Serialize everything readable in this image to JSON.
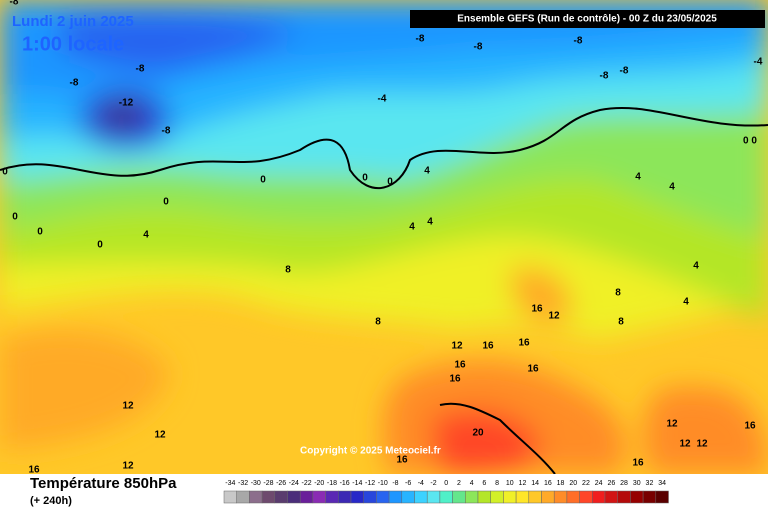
{
  "header": {
    "title": "Lundi 2 juin 2025",
    "time": "1:00 locale",
    "run": "Ensemble GEFS  (Run de contrôle)  -  00 Z du 23/05/2025"
  },
  "map": {
    "copyright": "Copyright © 2025 Meteociel.fr",
    "contour_labels": [
      -8,
      -8,
      -8,
      -8,
      -8,
      -8,
      -4,
      -8,
      -8,
      -12,
      -8,
      -4,
      "0 0",
      0,
      0,
      0,
      0,
      4,
      0,
      0,
      0,
      0,
      4,
      4,
      4,
      4,
      4,
      8,
      4,
      4,
      8,
      8,
      16,
      12,
      8,
      12,
      16,
      16,
      16,
      16,
      16,
      12,
      12,
      16,
      12,
      16,
      12,
      12,
      20,
      16,
      16,
      12
    ]
  },
  "legend": {
    "title": "Température 850hPa",
    "subtitle": "(+ 240h)",
    "values": [
      -34,
      -32,
      -30,
      -28,
      -26,
      -24,
      -22,
      -20,
      -18,
      -16,
      -14,
      -12,
      -10,
      -8,
      -6,
      -4,
      -2,
      0,
      2,
      4,
      6,
      8,
      10,
      12,
      14,
      16,
      18,
      20,
      22,
      24,
      26,
      28,
      30,
      32,
      34
    ],
    "colors": [
      "#c8c8c8",
      "#a8a8a8",
      "#8c6e8c",
      "#6e4a6e",
      "#5a3c6e",
      "#4b2e7a",
      "#6a1f9a",
      "#8a2bb4",
      "#5a28b4",
      "#3c28b4",
      "#2828c8",
      "#2846dc",
      "#2864f0",
      "#1e96ff",
      "#28b4ff",
      "#3cd2ff",
      "#5ae6f0",
      "#50f0c8",
      "#64e68c",
      "#8ce65a",
      "#b4e628",
      "#d2f028",
      "#f0f028",
      "#ffe628",
      "#ffc828",
      "#ffaa28",
      "#ff8c28",
      "#ff6e28",
      "#ff4628",
      "#f01e1e",
      "#d21414",
      "#b40a0a",
      "#960000",
      "#780000",
      "#5a0000"
    ]
  }
}
